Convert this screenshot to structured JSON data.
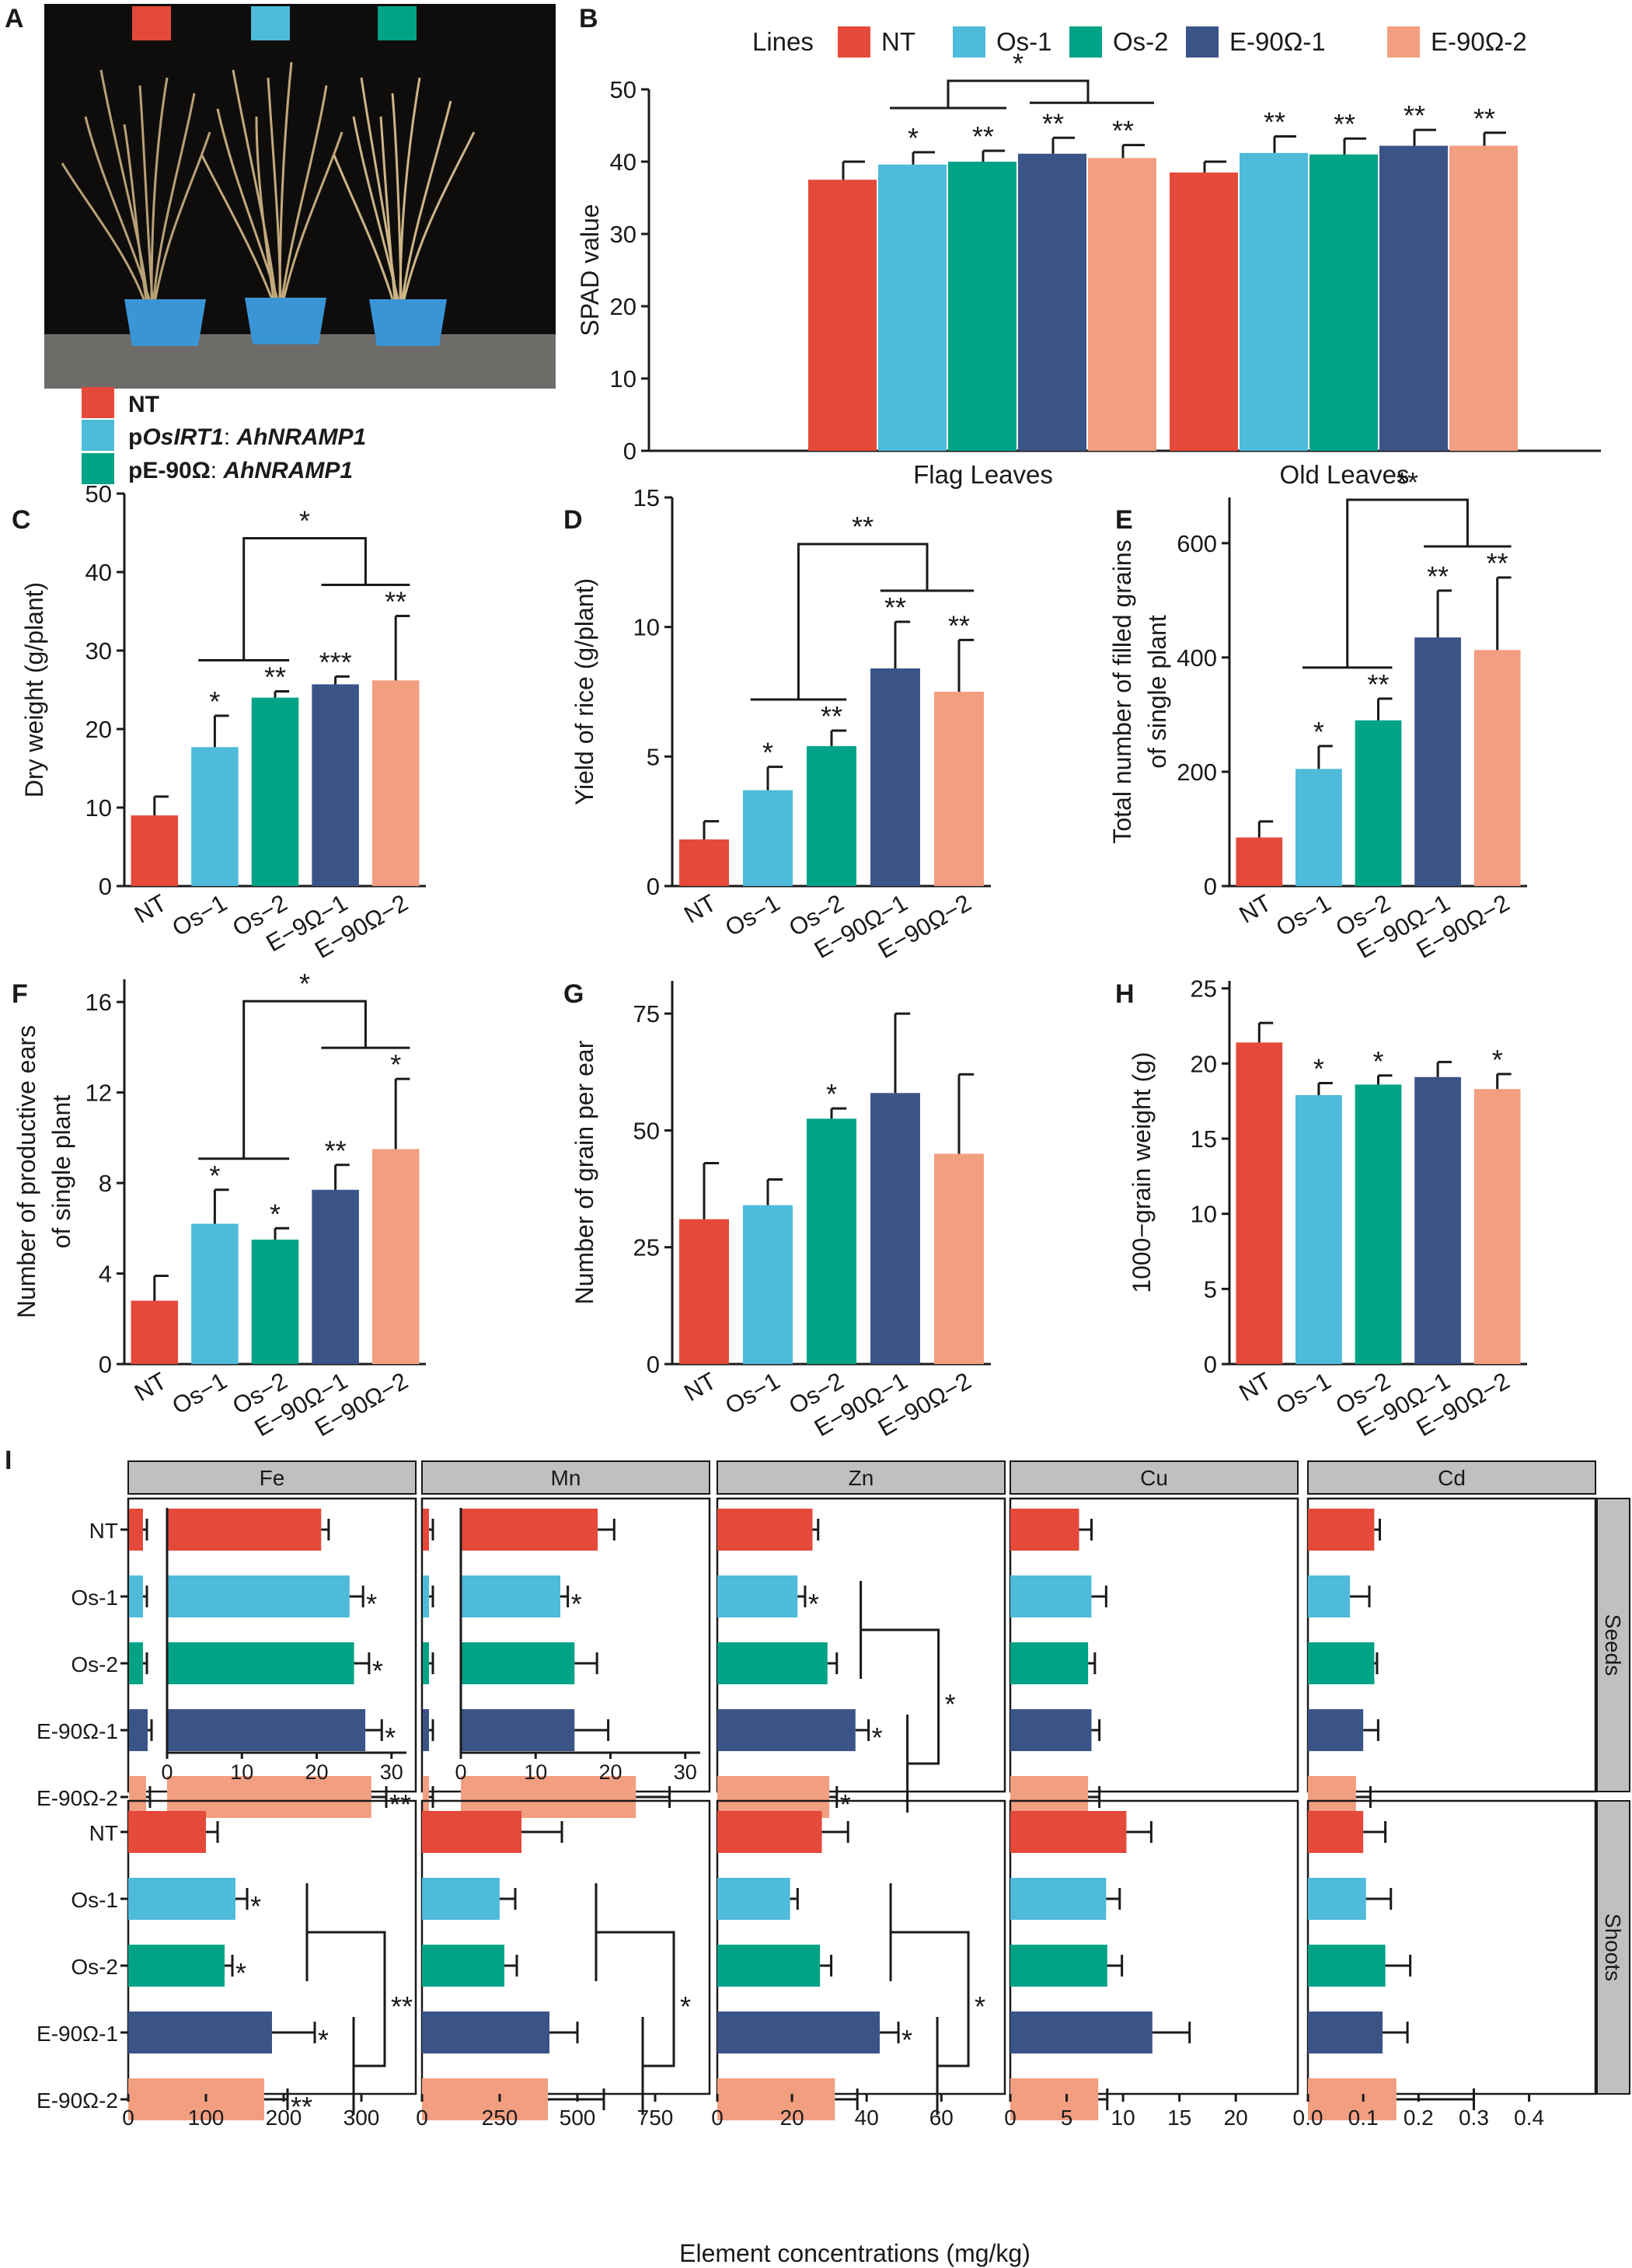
{
  "colors": {
    "NT": "#e5493a",
    "Os-1": "#4dbbd9",
    "Os-2": "#00a385",
    "E1": "#3b5488",
    "E2": "#f29e80"
  },
  "photo": {
    "label": "A",
    "legend": [
      {
        "plain1": "NT",
        "plain2": "",
        "ital": "",
        "suffix": "",
        "color": "#e5493a"
      },
      {
        "plain1": "p",
        "ital": "OsIRT1",
        "plain2": ": ",
        "suffix": "AhNRAMP1",
        "color": "#4dbbd9"
      },
      {
        "plain1": "pE-90Ω",
        "ital": "",
        "plain2": ": ",
        "suffix": "AhNRAMP1",
        "color": "#00a385"
      }
    ]
  },
  "chart_data": [
    {
      "panel": "B",
      "type": "bar",
      "ylabel": "SPAD value",
      "ylim": [
        0,
        50
      ],
      "yticks": [
        0,
        10,
        20,
        30,
        40,
        50
      ],
      "legend_title": "Lines",
      "legend": [
        "NT",
        "Os-1",
        "Os-2",
        "E-90Ω-1",
        "E-90Ω-2"
      ],
      "categories": [
        "Flag Leaves",
        "Old Leaves"
      ],
      "series": [
        {
          "name": "NT",
          "values": [
            37.5,
            38.5
          ],
          "err": [
            2.5,
            1.5
          ],
          "sig": [
            "",
            ""
          ]
        },
        {
          "name": "Os-1",
          "values": [
            39.6,
            41.2
          ],
          "err": [
            1.7,
            2.3
          ],
          "sig": [
            "*",
            "**"
          ]
        },
        {
          "name": "Os-2",
          "values": [
            40.0,
            41.0
          ],
          "err": [
            1.5,
            2.2
          ],
          "sig": [
            "**",
            "**"
          ]
        },
        {
          "name": "E-90Ω-1",
          "values": [
            41.1,
            42.2
          ],
          "err": [
            2.2,
            2.2
          ],
          "sig": [
            "**",
            "**"
          ]
        },
        {
          "name": "E-90Ω-2",
          "values": [
            40.5,
            42.2
          ],
          "err": [
            1.8,
            1.8
          ],
          "sig": [
            "**",
            "**"
          ]
        }
      ],
      "bracket": "*"
    },
    {
      "panel": "C",
      "type": "bar",
      "ylabel": "Dry weight (g/plant)",
      "ylim": [
        0,
        50
      ],
      "yticks": [
        0,
        10,
        20,
        30,
        40,
        50
      ],
      "categories": [
        "NT",
        "Os−1",
        "Os−2",
        "E−9Ω−1",
        "E−90Ω−2"
      ],
      "values": [
        9.0,
        17.7,
        24.0,
        25.7,
        26.2
      ],
      "err": [
        2.4,
        4.0,
        0.8,
        1.0,
        8.2
      ],
      "sig": [
        "",
        "*",
        "**",
        "***",
        "**"
      ],
      "bracket": "*"
    },
    {
      "panel": "D",
      "type": "bar",
      "ylabel": "Yield of rice (g/plant)",
      "ylim": [
        0,
        15
      ],
      "yticks": [
        0,
        5,
        10,
        15
      ],
      "categories": [
        "NT",
        "Os−1",
        "Os−2",
        "E−90Ω−1",
        "E−90Ω−2"
      ],
      "values": [
        1.8,
        3.7,
        5.4,
        8.4,
        7.5
      ],
      "err": [
        0.7,
        0.9,
        0.6,
        1.8,
        2.0
      ],
      "sig": [
        "",
        "*",
        "**",
        "**",
        "**"
      ],
      "bracket": "**"
    },
    {
      "panel": "E",
      "type": "bar",
      "ylabel_lines": [
        "Total number of filled grains",
        "of single plant"
      ],
      "ylim": [
        0,
        680
      ],
      "yticks": [
        0,
        200,
        400,
        600
      ],
      "categories": [
        "NT",
        "Os−1",
        "Os−2",
        "E−90Ω−1",
        "E−90Ω−2"
      ],
      "values": [
        85,
        205,
        290,
        435,
        413
      ],
      "err": [
        28,
        40,
        38,
        82,
        127
      ],
      "sig": [
        "",
        "*",
        "**",
        "**",
        "**"
      ],
      "bracket": "**"
    },
    {
      "panel": "F",
      "type": "bar",
      "ylabel_lines": [
        "Number of productive ears",
        "of single plant"
      ],
      "ylim": [
        0,
        17
      ],
      "yticks": [
        0,
        4,
        8,
        12,
        16
      ],
      "categories": [
        "NT",
        "Os−1",
        "Os−2",
        "E−90Ω−1",
        "E−90Ω−2"
      ],
      "values": [
        2.8,
        6.2,
        5.5,
        7.7,
        9.5
      ],
      "err": [
        1.1,
        1.5,
        0.5,
        1.1,
        3.1
      ],
      "sig": [
        "",
        "*",
        "*",
        "**",
        "*"
      ],
      "bracket": "*"
    },
    {
      "panel": "G",
      "type": "bar",
      "ylabel": "Number of grain per ear",
      "ylim": [
        0,
        82
      ],
      "yticks": [
        0,
        25,
        50,
        75
      ],
      "categories": [
        "NT",
        "Os−1",
        "Os−2",
        "E−90Ω−1",
        "E−90Ω−2"
      ],
      "values": [
        31,
        34,
        52.5,
        58,
        45
      ],
      "err": [
        12,
        5.5,
        2.2,
        17,
        17
      ],
      "sig": [
        "",
        "",
        "*",
        "",
        ""
      ]
    },
    {
      "panel": "H",
      "type": "bar",
      "ylabel": "1000−grain weight (g)",
      "ylim": [
        0,
        25.5
      ],
      "yticks": [
        0,
        5,
        10,
        15,
        20,
        25
      ],
      "categories": [
        "NT",
        "Os−1",
        "Os−2",
        "E−90Ω−1",
        "E−90Ω−2"
      ],
      "values": [
        21.4,
        17.9,
        18.6,
        19.1,
        18.3
      ],
      "err": [
        1.3,
        0.8,
        0.6,
        1.0,
        1.0
      ],
      "sig": [
        "",
        "*",
        "*",
        "",
        "*"
      ]
    },
    {
      "panel": "I",
      "type": "bar",
      "xlabel": "Element concentrations (mg/kg)",
      "facets": [
        "Fe",
        "Mn",
        "Zn",
        "Cu",
        "Cd"
      ],
      "rows": [
        "Seeds",
        "Shoots"
      ],
      "lines": [
        "NT",
        "Os-1",
        "Os-2",
        "E-90Ω-1",
        "E-90Ω-2"
      ],
      "axis_ticks": [
        [
          0,
          100,
          200,
          300
        ],
        [
          0,
          250,
          500,
          750
        ],
        [
          0,
          20,
          40,
          60
        ],
        [
          0,
          5,
          10,
          15,
          20
        ],
        [
          0.0,
          0.1,
          0.2,
          0.3,
          0.4
        ]
      ],
      "axis_tick_labels": [
        [
          "0",
          "100",
          "200",
          "300"
        ],
        [
          "0",
          "250",
          "500",
          "750"
        ],
        [
          "0",
          "20",
          "40",
          "60"
        ],
        [
          "0",
          "5",
          "10",
          "15",
          "20"
        ],
        [
          "0.0",
          "0.1",
          "0.2",
          "0.3",
          "0.4"
        ]
      ],
      "xmax": [
        370,
        925,
        77,
        25.5,
        0.52
      ],
      "seeds": [
        {
          "values": [
            20.6,
            24.4,
            25.0,
            26.5,
            27.3
          ],
          "err": [
            1.0,
            1.8,
            2.0,
            2.2,
            2.0
          ],
          "sig": [
            "",
            "*",
            "*",
            "*",
            "**"
          ]
        },
        {
          "values": [
            18.3,
            13.3,
            15.2,
            15.2,
            23.4
          ],
          "err": [
            2.2,
            1.0,
            3.0,
            4.5,
            4.5
          ],
          "sig": [
            "",
            "*",
            "",
            "",
            ""
          ]
        },
        {
          "values": [
            25.5,
            21.5,
            29.5,
            37.0,
            30.0
          ],
          "err": [
            1.5,
            2.0,
            2.5,
            3.5,
            2.0
          ],
          "sig": [
            "",
            "*",
            "",
            "*",
            "*"
          ]
        },
        {
          "values": [
            6.1,
            7.2,
            6.9,
            7.2,
            6.9
          ],
          "err": [
            1.1,
            1.3,
            0.6,
            0.7,
            1.0
          ],
          "sig": [
            "",
            "",
            "",
            "",
            ""
          ]
        },
        {
          "values": [
            0.12,
            0.076,
            0.12,
            0.1,
            0.087
          ],
          "err": [
            0.01,
            0.035,
            0.005,
            0.027,
            0.026
          ],
          "sig": [
            "",
            "",
            "",
            "",
            ""
          ]
        }
      ],
      "seeds_inset": {
        "Fe": {
          "ticks": [
            0,
            10,
            20,
            30
          ],
          "xmax": 32
        },
        "Mn": {
          "ticks": [
            0,
            10,
            20,
            30
          ],
          "xmax": 32
        }
      },
      "shoots": [
        {
          "values": [
            100,
            138,
            124,
            185,
            175
          ],
          "err": [
            15,
            15,
            10,
            55,
            30
          ],
          "sig": [
            "",
            "*",
            "*",
            "*",
            "**"
          ]
        },
        {
          "values": [
            320,
            250,
            265,
            410,
            405
          ],
          "err": [
            130,
            50,
            40,
            90,
            180
          ],
          "sig": [
            "",
            "",
            "",
            "",
            ""
          ]
        },
        {
          "values": [
            28,
            19.5,
            27.5,
            43.5,
            31.5
          ],
          "err": [
            7,
            2,
            3,
            5,
            6
          ],
          "sig": [
            "",
            "",
            "",
            "*",
            ""
          ]
        },
        {
          "values": [
            10.3,
            8.5,
            8.6,
            12.6,
            7.8
          ],
          "err": [
            2.2,
            1.2,
            1.3,
            3.3,
            0.8
          ],
          "sig": [
            "",
            "",
            "",
            "",
            ""
          ]
        },
        {
          "values": [
            0.1,
            0.105,
            0.14,
            0.135,
            0.16
          ],
          "err": [
            0.04,
            0.045,
            0.045,
            0.045,
            0.14
          ],
          "sig": [
            "",
            "",
            "",
            "",
            ""
          ]
        }
      ],
      "brackets": {
        "seeds_Zn": "*",
        "shoots_Fe": "**",
        "shoots_Mn": "*",
        "shoots_Zn": "*"
      }
    }
  ]
}
